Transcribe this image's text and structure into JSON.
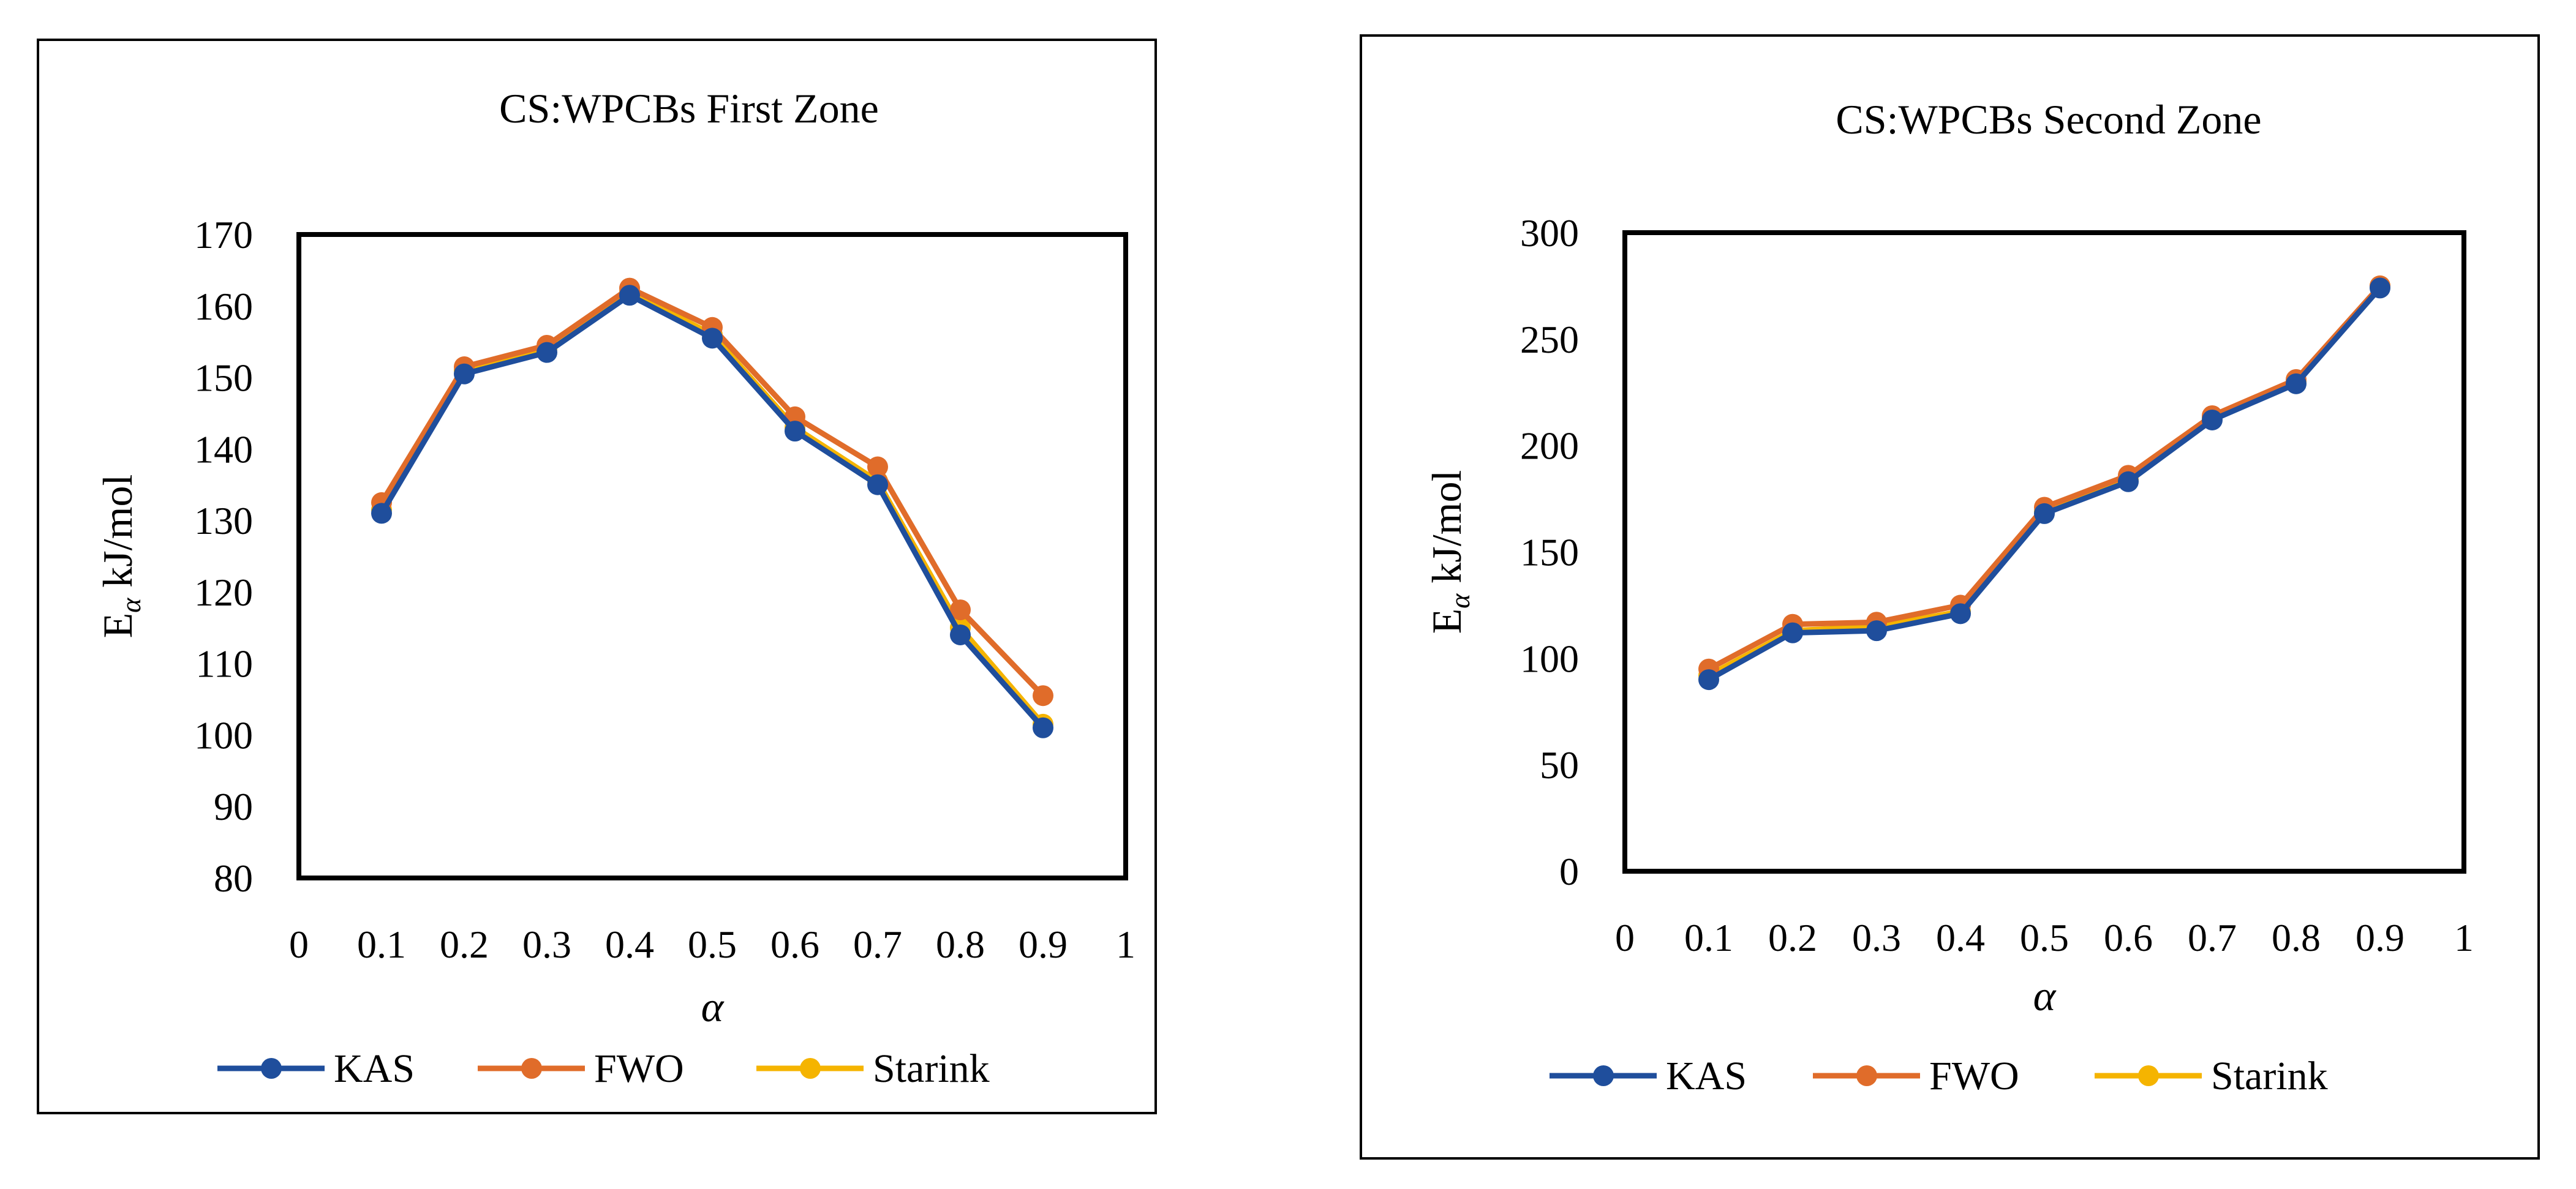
{
  "colors": {
    "KAS": "#1f4e9c",
    "FWO": "#e06c2a",
    "Starink": "#f5b400",
    "axis": "#000000",
    "background": "#ffffff"
  },
  "axis_labels": {
    "ylabel_main": "E",
    "ylabel_sub": "α",
    "ylabel_rest": "  kJ/mol"
  },
  "chart_data": [
    {
      "type": "line",
      "title": "CS:WPCBs First Zone",
      "xlabel": "α",
      "ylabel": "Eα kJ/mol",
      "x": [
        0.1,
        0.2,
        0.3,
        0.4,
        0.5,
        0.6,
        0.7,
        0.8,
        0.9
      ],
      "xlim": [
        0,
        1
      ],
      "ylim": [
        80,
        170
      ],
      "x_ticks": [
        "0",
        "0.1",
        "0.2",
        "0.3",
        "0.4",
        "0.5",
        "0.6",
        "0.7",
        "0.8",
        "0.9",
        "1"
      ],
      "y_ticks": [
        "80",
        "90",
        "100",
        "110",
        "120",
        "130",
        "140",
        "150",
        "160",
        "170"
      ],
      "legend": "bottom",
      "grid": false,
      "series": [
        {
          "name": "KAS",
          "values": [
            131.0,
            150.5,
            153.5,
            161.5,
            155.5,
            142.5,
            135.0,
            114.0,
            101.0
          ]
        },
        {
          "name": "FWO",
          "values": [
            132.5,
            151.5,
            154.5,
            162.5,
            157.0,
            144.5,
            137.5,
            117.5,
            105.5
          ]
        },
        {
          "name": "Starink",
          "values": [
            131.5,
            151.0,
            154.0,
            162.0,
            156.0,
            143.0,
            135.5,
            115.0,
            101.5
          ]
        }
      ]
    },
    {
      "type": "line",
      "title": "CS:WPCBs Second Zone",
      "xlabel": "α",
      "ylabel": "Eα kJ/mol",
      "x": [
        0.1,
        0.2,
        0.3,
        0.4,
        0.5,
        0.6,
        0.7,
        0.8,
        0.9
      ],
      "xlim": [
        0,
        1
      ],
      "ylim": [
        0,
        300
      ],
      "x_ticks": [
        "0",
        "0.1",
        "0.2",
        "0.3",
        "0.4",
        "0.5",
        "0.6",
        "0.7",
        "0.8",
        "0.9",
        "1"
      ],
      "y_ticks": [
        "0",
        "50",
        "100",
        "150",
        "200",
        "250",
        "300"
      ],
      "legend": "bottom",
      "grid": false,
      "series": [
        {
          "name": "KAS",
          "values": [
            90,
            112,
            113,
            121,
            168,
            183,
            212,
            229,
            274
          ]
        },
        {
          "name": "FWO",
          "values": [
            95,
            116,
            117,
            125,
            171,
            186,
            214,
            231,
            275
          ]
        },
        {
          "name": "Starink",
          "values": [
            92,
            113,
            115,
            122,
            169,
            184,
            213,
            230,
            275
          ]
        }
      ]
    }
  ]
}
